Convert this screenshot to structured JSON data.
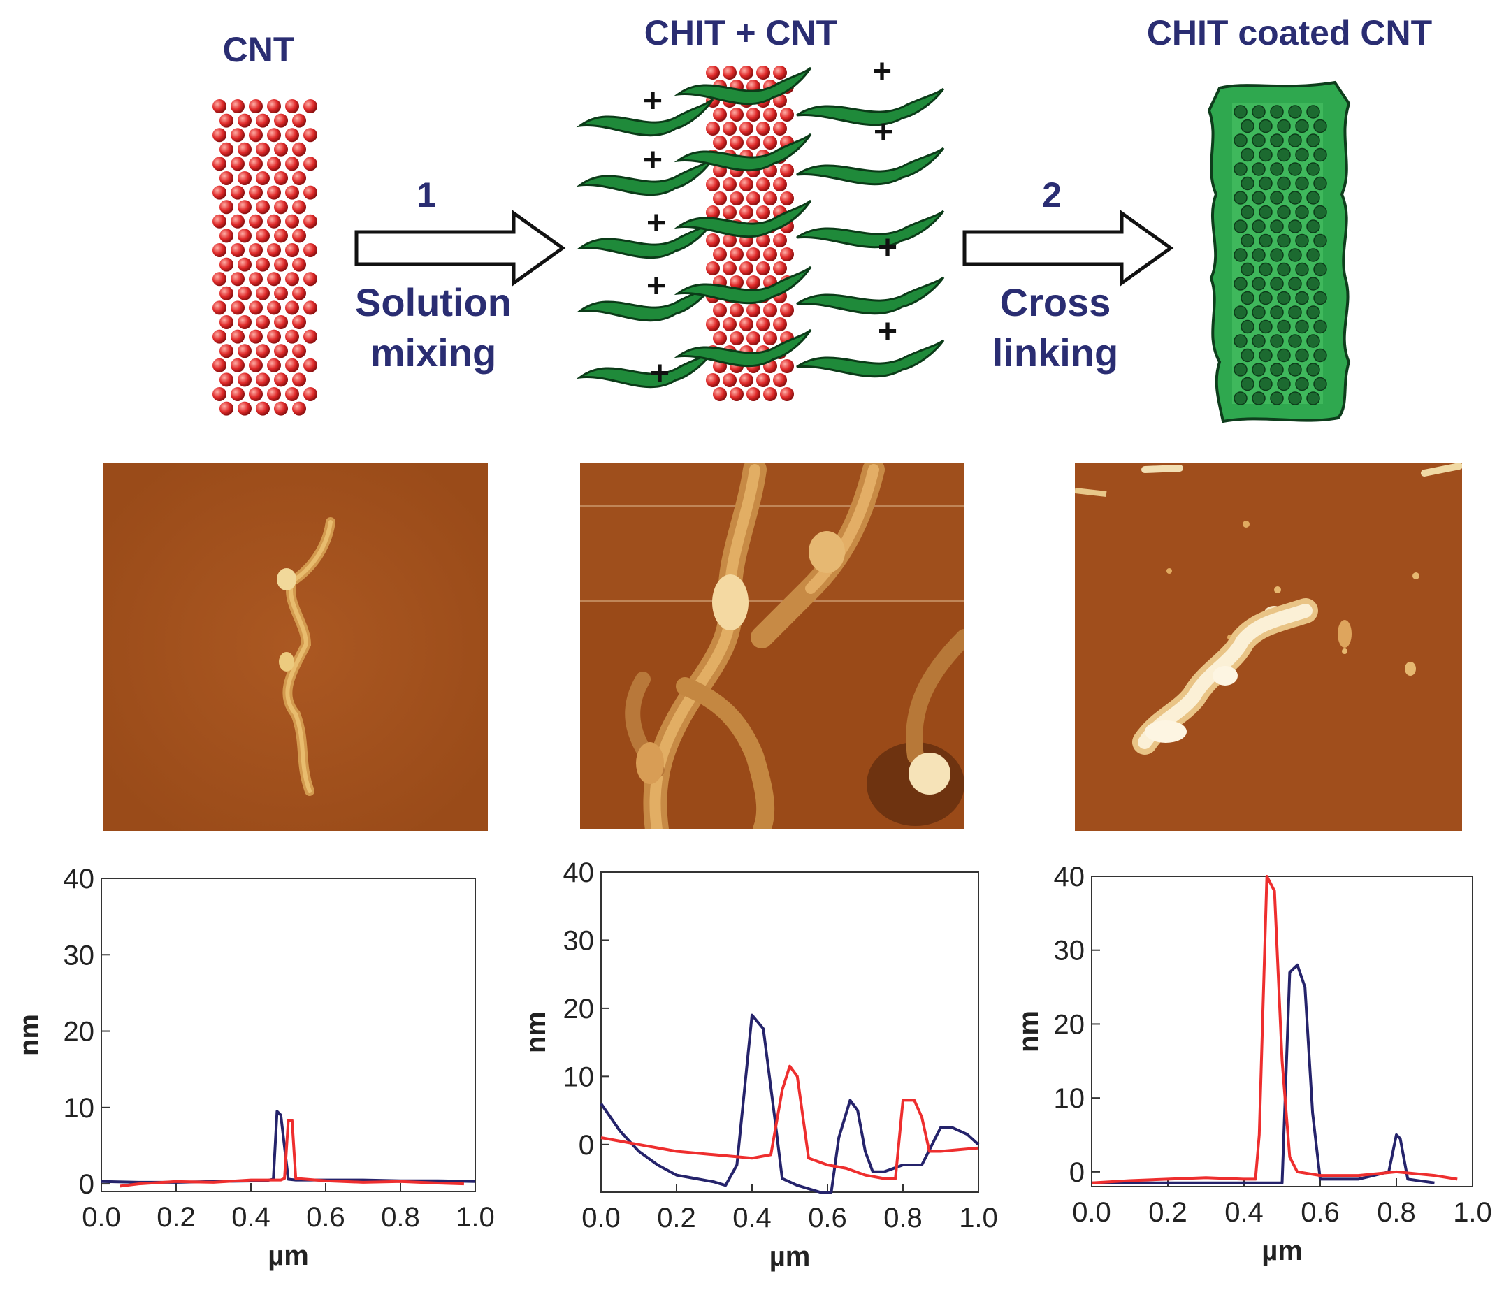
{
  "schematic": {
    "titles": [
      "CNT",
      "CHIT + CNT",
      "CHIT coated CNT"
    ],
    "steps": [
      {
        "number": "1",
        "caption_line1": "Solution",
        "caption_line2": "mixing"
      },
      {
        "number": "2",
        "caption_line1": "Cross",
        "caption_line2": "linking"
      }
    ],
    "charge_symbol": "+",
    "colors": {
      "cnt_atom": "#e02a2a",
      "chitosan": "#1f8a3a",
      "coated": "#2fa84f",
      "label": "#2a2d72"
    }
  },
  "afm_images": [
    {
      "name": "afm-cnt",
      "background": "#a4521e"
    },
    {
      "name": "afm-chit-cnt",
      "background": "#9a4a18"
    },
    {
      "name": "afm-chit-coated-cnt",
      "background": "#a04e1c"
    }
  ],
  "chart_data": [
    {
      "type": "line",
      "xlabel": "µm",
      "ylabel": "nm",
      "xlim": [
        0.0,
        1.0
      ],
      "ylim": [
        -1,
        40
      ],
      "xticks": [
        "0.0",
        "0.2",
        "0.4",
        "0.6",
        "0.8",
        "1.0"
      ],
      "yticks": [
        "0",
        "10",
        "20",
        "30",
        "40"
      ],
      "series": [
        {
          "color": "#25236b",
          "x": [
            0.0,
            0.1,
            0.2,
            0.3,
            0.44,
            0.46,
            0.47,
            0.48,
            0.5,
            0.52,
            0.6,
            0.7,
            0.8,
            0.9,
            1.0
          ],
          "y": [
            0.3,
            0.2,
            0.2,
            0.3,
            0.4,
            0.6,
            9.5,
            9.0,
            0.6,
            0.5,
            0.5,
            0.5,
            0.4,
            0.4,
            0.3
          ]
        },
        {
          "color": "#ee2e2e",
          "x": [
            0.05,
            0.1,
            0.2,
            0.3,
            0.4,
            0.48,
            0.49,
            0.5,
            0.51,
            0.52,
            0.6,
            0.7,
            0.8,
            0.9,
            0.97
          ],
          "y": [
            -0.3,
            0.0,
            0.3,
            0.2,
            0.5,
            0.5,
            0.7,
            8.3,
            8.3,
            0.7,
            0.4,
            0.2,
            0.3,
            0.1,
            0.0
          ]
        }
      ]
    },
    {
      "type": "line",
      "xlabel": "µm",
      "ylabel": "nm",
      "xlim": [
        0.0,
        1.0
      ],
      "ylim": [
        -7,
        40
      ],
      "xticks": [
        "0.0",
        "0.2",
        "0.4",
        "0.6",
        "0.8",
        "1.0"
      ],
      "yticks": [
        "0",
        "10",
        "20",
        "30",
        "40"
      ],
      "series": [
        {
          "color": "#25236b",
          "x": [
            0.0,
            0.05,
            0.1,
            0.15,
            0.2,
            0.25,
            0.3,
            0.33,
            0.36,
            0.4,
            0.43,
            0.46,
            0.48,
            0.52,
            0.58,
            0.61,
            0.63,
            0.66,
            0.68,
            0.7,
            0.72,
            0.75,
            0.8,
            0.85,
            0.9,
            0.93,
            0.97,
            1.0
          ],
          "y": [
            6,
            2,
            -1,
            -3,
            -4.5,
            -5,
            -5.5,
            -6,
            -3,
            19,
            17,
            4,
            -5,
            -6,
            -7,
            -7,
            1,
            6.5,
            5,
            -1,
            -4,
            -4,
            -3,
            -3,
            2.5,
            2.5,
            1.5,
            0
          ]
        },
        {
          "color": "#ee2e2e",
          "x": [
            0.0,
            0.1,
            0.2,
            0.3,
            0.4,
            0.45,
            0.48,
            0.5,
            0.52,
            0.55,
            0.6,
            0.65,
            0.7,
            0.75,
            0.78,
            0.8,
            0.83,
            0.85,
            0.87,
            0.9,
            1.0
          ],
          "y": [
            1,
            0,
            -1,
            -1.5,
            -2,
            -1.5,
            8,
            11.5,
            10,
            -2,
            -3,
            -3.5,
            -4.5,
            -5,
            -5,
            6.5,
            6.5,
            4,
            -1,
            -1,
            -0.5
          ]
        }
      ]
    },
    {
      "type": "line",
      "xlabel": "µm",
      "ylabel": "nm",
      "xlim": [
        0.0,
        1.0
      ],
      "ylim": [
        -2,
        40
      ],
      "xticks": [
        "0.0",
        "0.2",
        "0.4",
        "0.6",
        "0.8",
        "1.0"
      ],
      "yticks": [
        "0",
        "10",
        "20",
        "30",
        "40"
      ],
      "series": [
        {
          "color": "#25236b",
          "x": [
            0.0,
            0.1,
            0.2,
            0.3,
            0.45,
            0.5,
            0.52,
            0.54,
            0.56,
            0.58,
            0.6,
            0.7,
            0.78,
            0.8,
            0.81,
            0.83,
            0.9
          ],
          "y": [
            -1.5,
            -1.5,
            -1.5,
            -1.5,
            -1.5,
            -1.5,
            27,
            28,
            25,
            8,
            -1,
            -1,
            0,
            5,
            4.5,
            -1,
            -1.5
          ]
        },
        {
          "color": "#ee2e2e",
          "x": [
            0.0,
            0.1,
            0.2,
            0.3,
            0.4,
            0.43,
            0.44,
            0.46,
            0.48,
            0.5,
            0.52,
            0.54,
            0.6,
            0.7,
            0.8,
            0.9,
            0.96
          ],
          "y": [
            -1.5,
            -1.2,
            -1,
            -0.8,
            -1,
            -1,
            5,
            40,
            38,
            15,
            2,
            0,
            -0.5,
            -0.5,
            0,
            -0.5,
            -1
          ]
        }
      ]
    }
  ]
}
